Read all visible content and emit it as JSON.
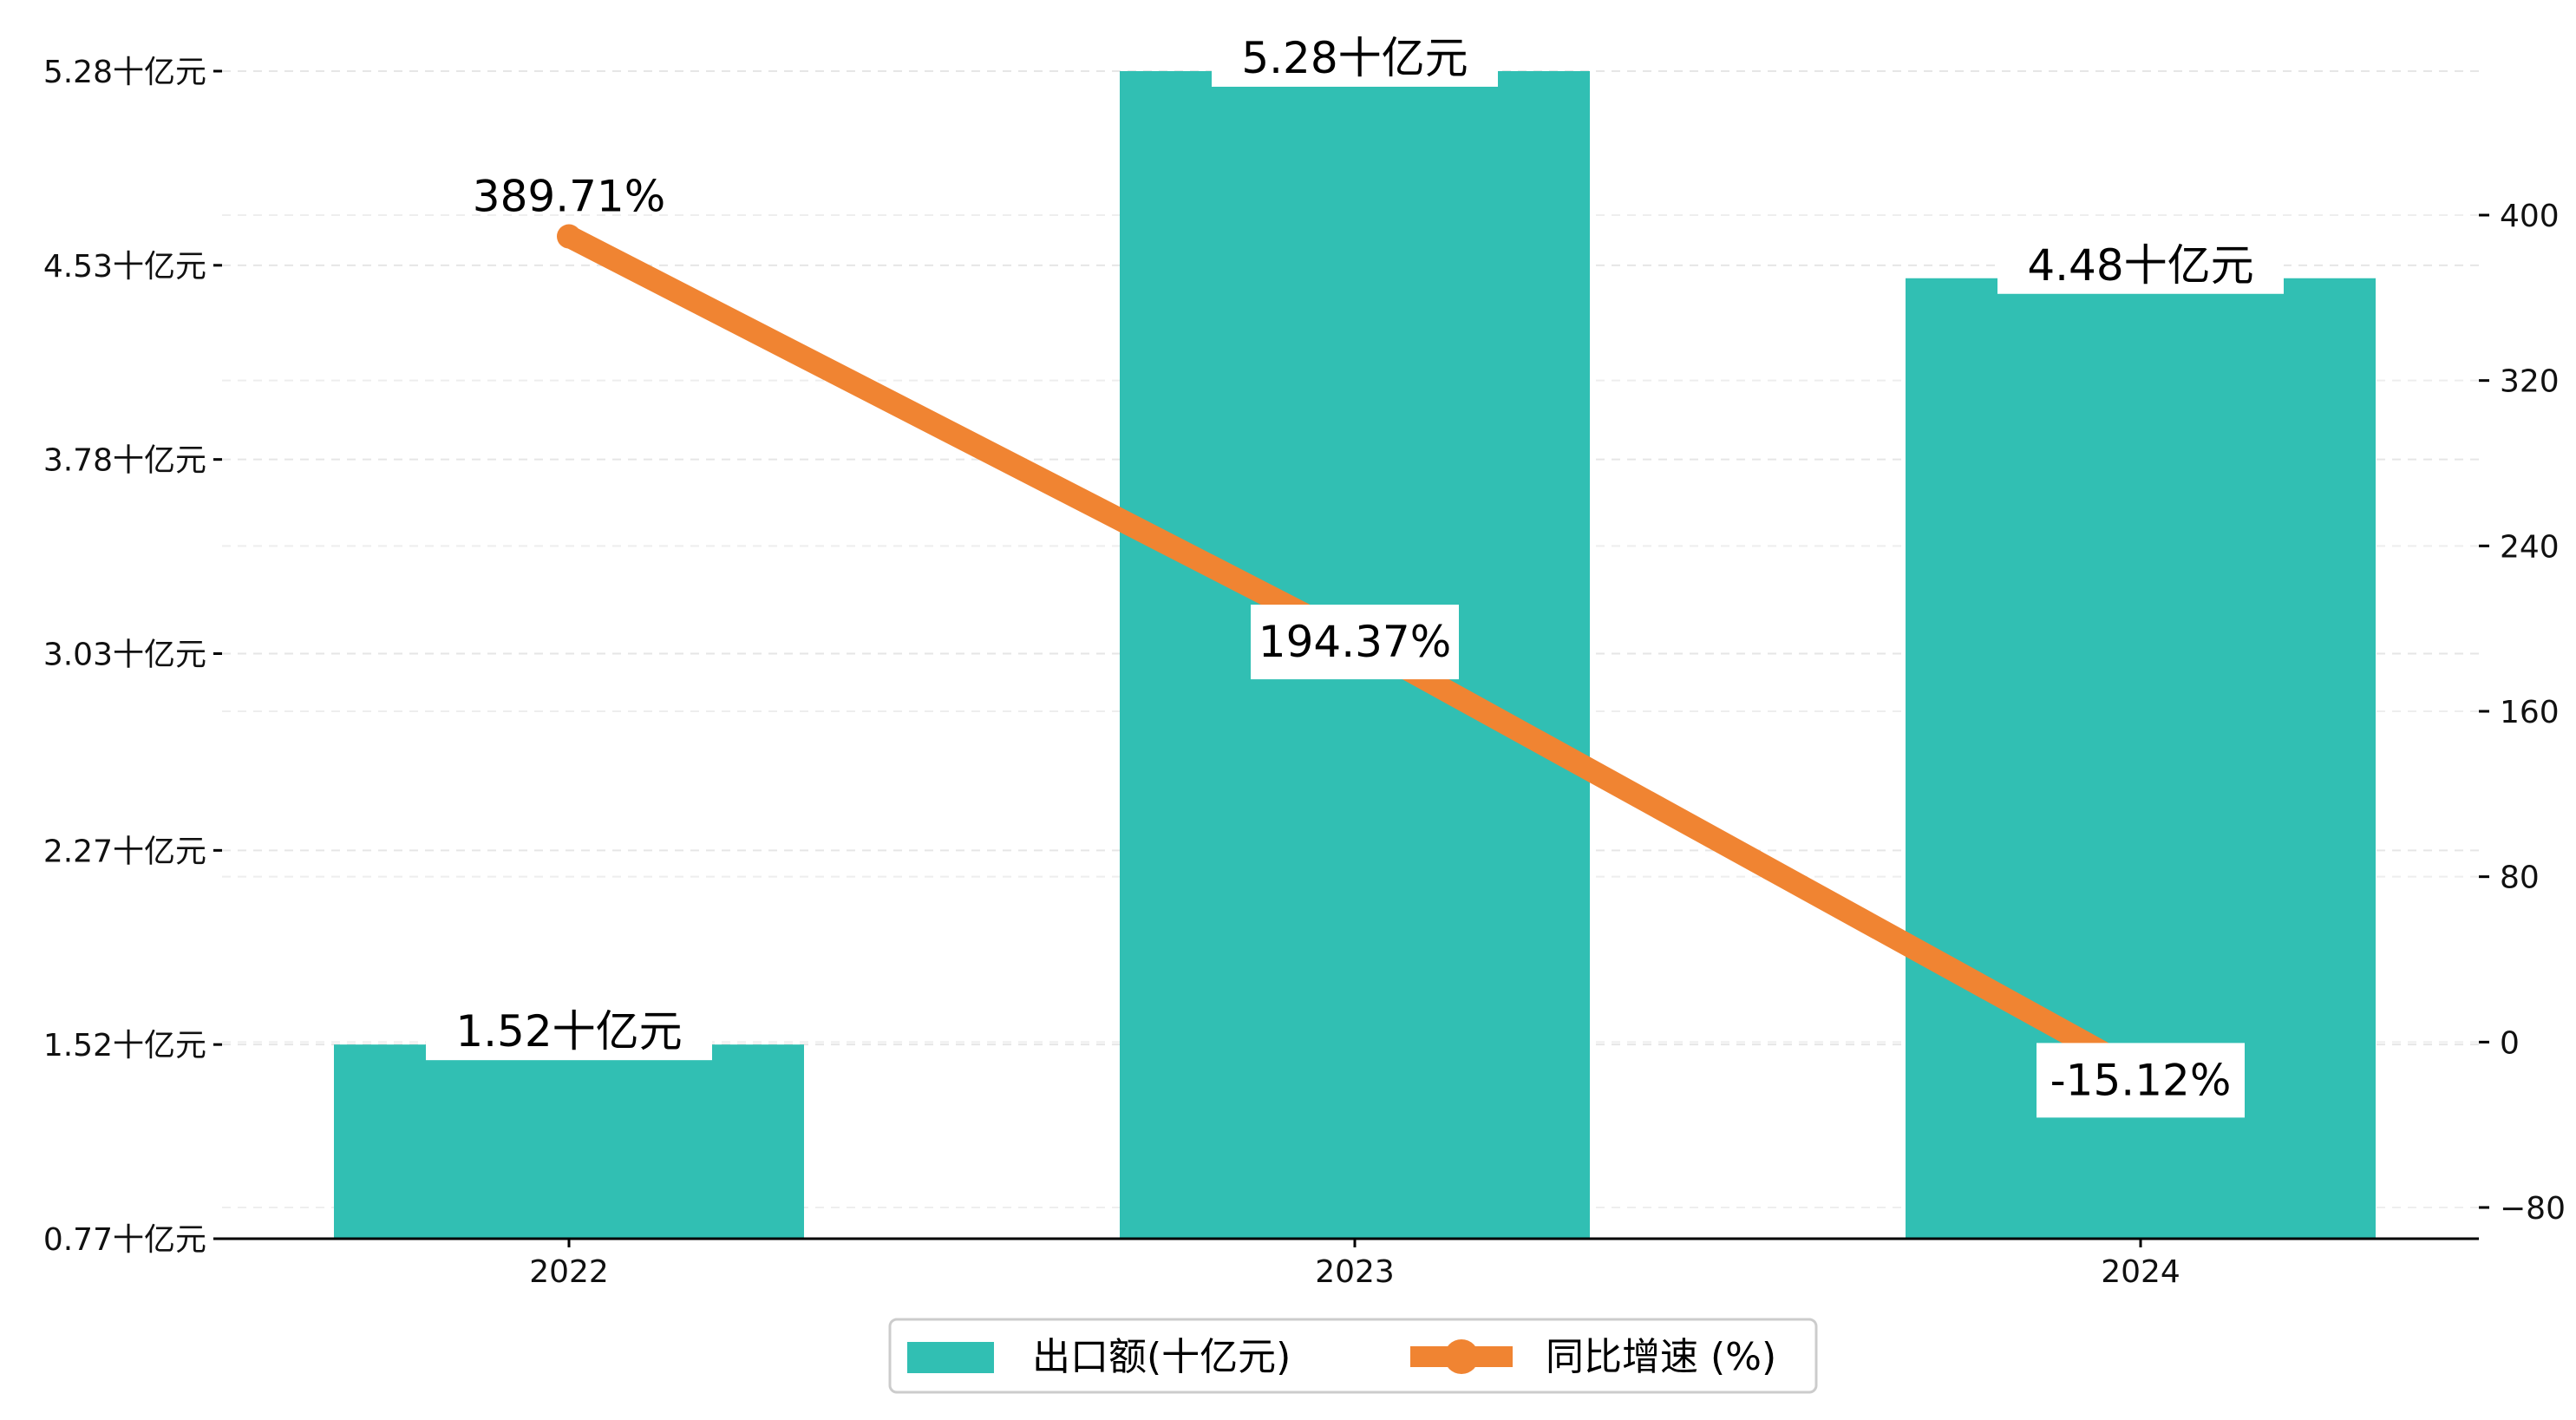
{
  "chart_data": {
    "type": "bar",
    "categories": [
      "2022",
      "2023",
      "2024"
    ],
    "series": [
      {
        "name": "出口额(十亿元)",
        "type": "bar",
        "axis": "left",
        "values": [
          1.52,
          5.28,
          4.48
        ],
        "labels": [
          "1.52十亿元",
          "5.28十亿元",
          "4.48十亿元"
        ],
        "color": "#31bfb3"
      },
      {
        "name": "同比增速 (%)",
        "type": "line",
        "axis": "right",
        "values": [
          389.71,
          194.37,
          -15.12
        ],
        "labels": [
          "389.71%",
          "194.37%",
          "-15.12%"
        ],
        "color": "#f08432"
      }
    ],
    "y_left": {
      "ticks": [
        0.77,
        1.52,
        2.27,
        3.03,
        3.78,
        4.53,
        5.28
      ],
      "tick_labels": [
        "0.77十亿元",
        "1.52十亿元",
        "2.27十亿元",
        "3.03十亿元",
        "3.78十亿元",
        "4.53十亿元",
        "5.28十亿元"
      ],
      "ylim": [
        0.77,
        5.28
      ]
    },
    "y_right": {
      "ticks": [
        -80,
        0,
        80,
        160,
        240,
        320,
        400
      ],
      "tick_labels": [
        "−80",
        "0",
        "80",
        "160",
        "240",
        "320",
        "400"
      ],
      "ylim": [
        -95,
        470
      ]
    },
    "grid": true,
    "legend_position": "bottom-center"
  }
}
